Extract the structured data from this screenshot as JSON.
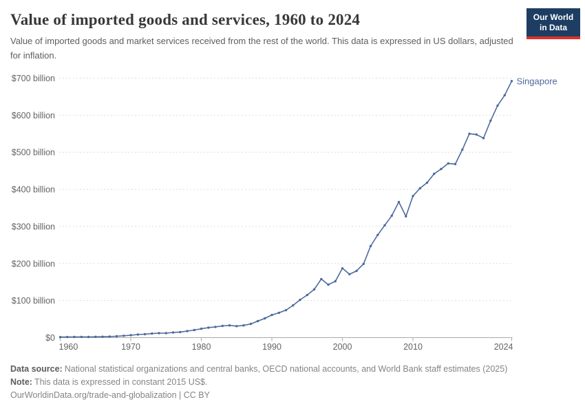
{
  "header": {
    "title": "Value of imported goods and services, 1960 to 2024",
    "subtitle": "Value of imported goods and market services received from the rest of the world. This data is expressed in US dollars, adjusted for inflation.",
    "logo": {
      "line1": "Our World",
      "line2": "in Data",
      "bg_color": "#1d3d63",
      "stripe_color": "#dc3328",
      "text_color": "#ffffff"
    }
  },
  "chart_data": {
    "type": "line",
    "title": "Value of imported goods and services, 1960 to 2024",
    "xlabel": "",
    "ylabel": "",
    "x_range": [
      1960,
      2024
    ],
    "ylim": [
      0,
      700
    ],
    "grid": "horizontal-dashed",
    "legend_position": "end-of-line",
    "x_ticks": [
      1960,
      1970,
      1980,
      1990,
      2000,
      2010,
      2024
    ],
    "y_ticks": [
      {
        "value": 0,
        "label": "$0"
      },
      {
        "value": 100,
        "label": "$100 billion"
      },
      {
        "value": 200,
        "label": "$200 billion"
      },
      {
        "value": 300,
        "label": "$300 billion"
      },
      {
        "value": 400,
        "label": "$400 billion"
      },
      {
        "value": 500,
        "label": "$500 billion"
      },
      {
        "value": 600,
        "label": "$600 billion"
      },
      {
        "value": 700,
        "label": "$700 billion"
      }
    ],
    "series": [
      {
        "name": "Singapore",
        "color": "#4c6a9c",
        "unit": "US$ billion",
        "years": [
          1960,
          1961,
          1962,
          1963,
          1964,
          1965,
          1966,
          1967,
          1968,
          1969,
          1970,
          1971,
          1972,
          1973,
          1974,
          1975,
          1976,
          1977,
          1978,
          1979,
          1980,
          1981,
          1982,
          1983,
          1984,
          1985,
          1986,
          1987,
          1988,
          1989,
          1990,
          1991,
          1992,
          1993,
          1994,
          1995,
          1996,
          1997,
          1998,
          1999,
          2000,
          2001,
          2002,
          2003,
          2004,
          2005,
          2006,
          2007,
          2008,
          2009,
          2010,
          2011,
          2012,
          2013,
          2014,
          2015,
          2016,
          2017,
          2018,
          2019,
          2020,
          2021,
          2022,
          2023,
          2024
        ],
        "values": [
          1.4,
          1.6,
          1.8,
          2.1,
          1.9,
          2.2,
          2.5,
          2.9,
          3.8,
          5,
          6.5,
          8.3,
          9.3,
          11,
          12,
          12,
          14,
          15,
          17.6,
          20.4,
          24,
          27,
          29,
          31.5,
          33,
          31,
          33,
          37,
          44.5,
          52,
          61,
          67,
          74,
          87,
          102,
          115,
          130,
          158,
          143,
          152,
          187,
          171,
          180,
          199,
          247,
          277,
          303,
          329,
          366,
          327,
          382,
          403,
          418,
          442,
          455,
          470,
          468,
          507,
          550,
          548,
          538,
          585,
          626,
          654,
          692
        ]
      }
    ]
  },
  "footer": {
    "data_source_label": "Data source:",
    "data_source_text": "National statistical organizations and central banks, OECD national accounts, and World Bank staff estimates (2025)",
    "note_label": "Note:",
    "note_text": "This data is expressed in constant 2015 US$.",
    "link_text": "OurWorldinData.org/trade-and-globalization | CC BY"
  }
}
